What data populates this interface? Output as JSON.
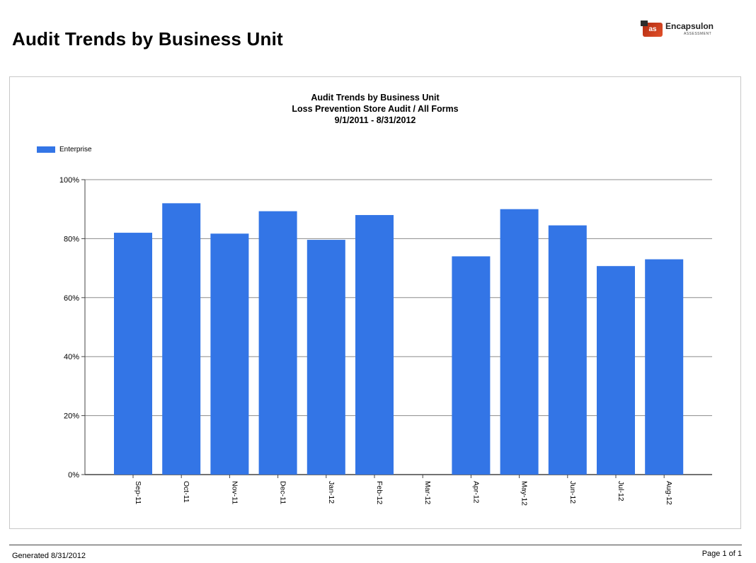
{
  "page": {
    "title": "Audit Trends by Business Unit",
    "logo_name": "Encapsulon",
    "logo_sub": "ASSESSMENT",
    "logo_badge": "as",
    "footer_generated": "Generated 8/31/2012",
    "footer_page": "Page 1 of 1"
  },
  "colors": {
    "bar": "#3375e6",
    "gridline": "#8c8c8c",
    "axis": "#444444"
  },
  "chart_data": {
    "type": "bar",
    "title": "Audit Trends by Business Unit",
    "subtitle": "Loss Prevention Store Audit / All Forms",
    "date_range": "9/1/2011 - 8/31/2012",
    "xlabel": "",
    "ylabel": "",
    "ylim": [
      0,
      100
    ],
    "y_ticks": [
      0,
      20,
      40,
      60,
      80,
      100
    ],
    "y_tick_labels": [
      "0%",
      "20%",
      "40%",
      "60%",
      "80%",
      "100%"
    ],
    "grid": true,
    "legend_position": "top-left",
    "categories": [
      "Sep-11",
      "Oct-11",
      "Nov-11",
      "Dec-11",
      "Jan-12",
      "Feb-12",
      "Mar-12",
      "Apr-12",
      "May-12",
      "Jun-12",
      "Jul-12",
      "Aug-12"
    ],
    "series": [
      {
        "name": "Enterprise",
        "values": [
          82,
          92,
          81.7,
          89.3,
          79.6,
          88,
          null,
          74,
          90,
          84.5,
          70.7,
          73
        ]
      }
    ]
  }
}
